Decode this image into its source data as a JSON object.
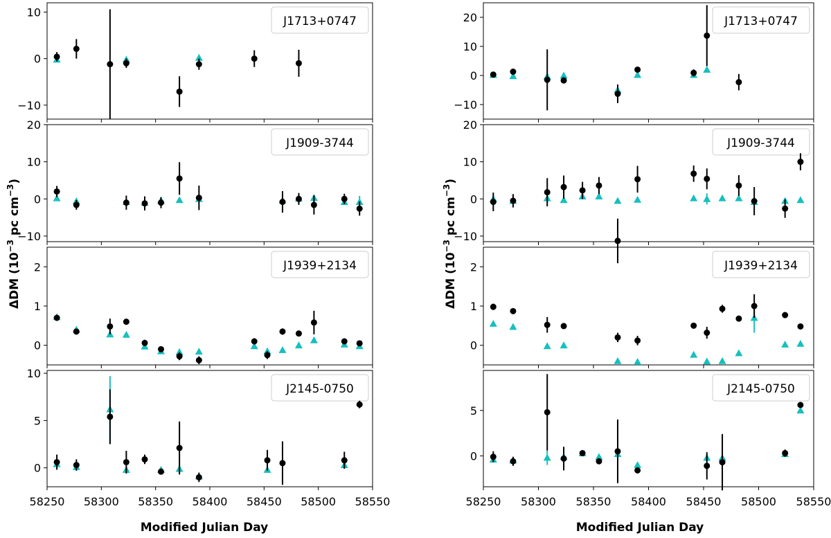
{
  "figure": {
    "xlabel": "Modified Julian Day",
    "ylabel_main": "ΔDM (10",
    "ylabel_exp": "−3",
    "ylabel_tail": " pc cm",
    "ylabel_tail_exp": "−3",
    "ylabel_close": ")",
    "xlim": [
      58250,
      58550
    ],
    "xticks": [
      58250,
      58300,
      58350,
      58400,
      58450,
      58500,
      58550
    ],
    "colors": {
      "measured": "#000000",
      "model": "#17bfbf"
    }
  },
  "chart_data": [
    {
      "type": "scatter",
      "column": "left",
      "panel": 1,
      "label": "J1713+0747",
      "ylim": [
        -13,
        12
      ],
      "yticks": [
        10,
        0,
        -10
      ],
      "ytick_labels": [
        "10",
        "0",
        "−10"
      ],
      "measured": [
        {
          "x": 58259,
          "y": 0.4,
          "err": 1.0
        },
        {
          "x": 58277,
          "y": 2.1,
          "err": 2.1
        },
        {
          "x": 58308,
          "y": -1.2,
          "err": 11.8
        },
        {
          "x": 58323,
          "y": -1.0,
          "err": 1.0
        },
        {
          "x": 58372,
          "y": -7.1,
          "err": 3.3
        },
        {
          "x": 58390,
          "y": -1.2,
          "err": 1.2
        },
        {
          "x": 58441,
          "y": 0.0,
          "err": 1.8
        },
        {
          "x": 58482,
          "y": -1.0,
          "err": 2.9
        }
      ],
      "model": [
        {
          "x": 58259,
          "y": -0.2,
          "err": 0
        },
        {
          "x": 58323,
          "y": -0.2,
          "err": 0
        },
        {
          "x": 58390,
          "y": 0.2,
          "err": 0
        }
      ]
    },
    {
      "type": "scatter",
      "column": "left",
      "panel": 2,
      "label": "J1909-3744",
      "ylim": [
        -11.5,
        20
      ],
      "yticks": [
        20,
        10,
        0,
        -10
      ],
      "ytick_labels": [
        "20",
        "10",
        "0",
        "−10"
      ],
      "measured": [
        {
          "x": 58259,
          "y": 2.0,
          "err": 1.5
        },
        {
          "x": 58277,
          "y": -1.6,
          "err": 1.3
        },
        {
          "x": 58323,
          "y": -1.0,
          "err": 1.9
        },
        {
          "x": 58340,
          "y": -1.2,
          "err": 1.9
        },
        {
          "x": 58355,
          "y": -1.0,
          "err": 1.5
        },
        {
          "x": 58372,
          "y": 5.5,
          "err": 4.4
        },
        {
          "x": 58390,
          "y": 0.3,
          "err": 3.3
        },
        {
          "x": 58467,
          "y": -0.8,
          "err": 2.9
        },
        {
          "x": 58482,
          "y": 0.0,
          "err": 1.6
        },
        {
          "x": 58496,
          "y": -1.6,
          "err": 2.6
        },
        {
          "x": 58524,
          "y": 0.0,
          "err": 1.4
        },
        {
          "x": 58538,
          "y": -2.6,
          "err": 1.9
        }
      ],
      "model": [
        {
          "x": 58259,
          "y": 0.2,
          "err": 0
        },
        {
          "x": 58277,
          "y": -0.6,
          "err": 0
        },
        {
          "x": 58323,
          "y": -0.8,
          "err": 0
        },
        {
          "x": 58340,
          "y": -1.0,
          "err": 0
        },
        {
          "x": 58355,
          "y": -0.4,
          "err": 0
        },
        {
          "x": 58372,
          "y": -0.3,
          "err": 0
        },
        {
          "x": 58390,
          "y": 0.0,
          "err": 0
        },
        {
          "x": 58467,
          "y": -0.4,
          "err": 0
        },
        {
          "x": 58482,
          "y": 0.1,
          "err": 0
        },
        {
          "x": 58496,
          "y": 0.3,
          "err": 0
        },
        {
          "x": 58524,
          "y": -0.8,
          "err": 0
        },
        {
          "x": 58538,
          "y": -0.8,
          "err": 1.6
        }
      ]
    },
    {
      "type": "scatter",
      "column": "left",
      "panel": 3,
      "label": "J1939+2134",
      "ylim": [
        -0.5,
        2.5
      ],
      "yticks": [
        2,
        1,
        0
      ],
      "ytick_labels": [
        "2",
        "1",
        "0"
      ],
      "measured": [
        {
          "x": 58259,
          "y": 0.7,
          "err": 0.08
        },
        {
          "x": 58277,
          "y": 0.35,
          "err": 0.05
        },
        {
          "x": 58308,
          "y": 0.48,
          "err": 0.2
        },
        {
          "x": 58323,
          "y": 0.6,
          "err": 0.06
        },
        {
          "x": 58340,
          "y": 0.06,
          "err": 0.08
        },
        {
          "x": 58355,
          "y": -0.1,
          "err": 0.05
        },
        {
          "x": 58372,
          "y": -0.28,
          "err": 0.1
        },
        {
          "x": 58390,
          "y": -0.38,
          "err": 0.1
        },
        {
          "x": 58441,
          "y": 0.1,
          "err": 0.08
        },
        {
          "x": 58453,
          "y": -0.25,
          "err": 0.1
        },
        {
          "x": 58467,
          "y": 0.35,
          "err": 0.08
        },
        {
          "x": 58482,
          "y": 0.3,
          "err": 0.06
        },
        {
          "x": 58496,
          "y": 0.58,
          "err": 0.3
        },
        {
          "x": 58524,
          "y": 0.1,
          "err": 0.06
        },
        {
          "x": 58538,
          "y": 0.05,
          "err": 0.06
        }
      ],
      "model": [
        {
          "x": 58259,
          "y": 0.72,
          "err": 0
        },
        {
          "x": 58277,
          "y": 0.4,
          "err": 0
        },
        {
          "x": 58308,
          "y": 0.28,
          "err": 0
        },
        {
          "x": 58323,
          "y": 0.27,
          "err": 0
        },
        {
          "x": 58340,
          "y": -0.03,
          "err": 0
        },
        {
          "x": 58355,
          "y": -0.15,
          "err": 0
        },
        {
          "x": 58372,
          "y": -0.17,
          "err": 0
        },
        {
          "x": 58390,
          "y": -0.16,
          "err": 0
        },
        {
          "x": 58441,
          "y": -0.02,
          "err": 0
        },
        {
          "x": 58453,
          "y": -0.15,
          "err": 0
        },
        {
          "x": 58467,
          "y": -0.12,
          "err": 0
        },
        {
          "x": 58482,
          "y": 0.0,
          "err": 0
        },
        {
          "x": 58496,
          "y": 0.13,
          "err": 0
        },
        {
          "x": 58524,
          "y": 0.02,
          "err": 0
        },
        {
          "x": 58538,
          "y": -0.02,
          "err": 0
        }
      ]
    },
    {
      "type": "scatter",
      "column": "left",
      "panel": 4,
      "label": "J2145-0750",
      "ylim": [
        -2.0,
        10.3
      ],
      "yticks": [
        10,
        5,
        0
      ],
      "ytick_labels": [
        "10",
        "5",
        "0"
      ],
      "measured": [
        {
          "x": 58259,
          "y": 0.6,
          "err": 0.8
        },
        {
          "x": 58277,
          "y": 0.3,
          "err": 0.6
        },
        {
          "x": 58308,
          "y": 5.4,
          "err": 2.9
        },
        {
          "x": 58323,
          "y": 0.6,
          "err": 1.2
        },
        {
          "x": 58340,
          "y": 0.9,
          "err": 0.5
        },
        {
          "x": 58355,
          "y": -0.4,
          "err": 0.3
        },
        {
          "x": 58372,
          "y": 2.1,
          "err": 2.8
        },
        {
          "x": 58390,
          "y": -1.0,
          "err": 0.5
        },
        {
          "x": 58453,
          "y": 0.8,
          "err": 1.1
        },
        {
          "x": 58467,
          "y": 0.5,
          "err": 2.3
        },
        {
          "x": 58524,
          "y": 0.8,
          "err": 0.9
        },
        {
          "x": 58538,
          "y": 6.7,
          "err": 0.4
        }
      ],
      "model": [
        {
          "x": 58259,
          "y": 0.4,
          "err": 0
        },
        {
          "x": 58277,
          "y": 0.1,
          "err": 0
        },
        {
          "x": 58308,
          "y": 6.2,
          "err": 3.5
        },
        {
          "x": 58323,
          "y": -0.2,
          "err": 0
        },
        {
          "x": 58355,
          "y": -0.2,
          "err": 0
        },
        {
          "x": 58372,
          "y": -0.1,
          "err": 0
        },
        {
          "x": 58390,
          "y": -0.9,
          "err": 0
        },
        {
          "x": 58453,
          "y": -0.2,
          "err": 0
        },
        {
          "x": 58524,
          "y": 0.3,
          "err": 0
        }
      ]
    },
    {
      "type": "scatter",
      "column": "right",
      "panel": 1,
      "label": "J1713+0747",
      "ylim": [
        -15,
        25
      ],
      "yticks": [
        20,
        10,
        0,
        -10
      ],
      "ytick_labels": [
        "20",
        "10",
        "0",
        "−10"
      ],
      "measured": [
        {
          "x": 58259,
          "y": 0.3,
          "err": 0.8
        },
        {
          "x": 58277,
          "y": 1.3,
          "err": 0.8
        },
        {
          "x": 58308,
          "y": -1.5,
          "err": 10.5
        },
        {
          "x": 58323,
          "y": -1.7,
          "err": 1.0
        },
        {
          "x": 58372,
          "y": -6.3,
          "err": 3.2
        },
        {
          "x": 58390,
          "y": 2.0,
          "err": 1.0
        },
        {
          "x": 58441,
          "y": 0.9,
          "err": 1.2
        },
        {
          "x": 58453,
          "y": 13.7,
          "err": 10.5
        },
        {
          "x": 58482,
          "y": -2.3,
          "err": 2.8
        }
      ],
      "model": [
        {
          "x": 58259,
          "y": 0.2,
          "err": 0
        },
        {
          "x": 58277,
          "y": -0.2,
          "err": 0
        },
        {
          "x": 58308,
          "y": -0.3,
          "err": 0
        },
        {
          "x": 58323,
          "y": 0.0,
          "err": 0
        },
        {
          "x": 58372,
          "y": -5.0,
          "err": 0
        },
        {
          "x": 58390,
          "y": 0.2,
          "err": 0
        },
        {
          "x": 58441,
          "y": 0.2,
          "err": 0
        },
        {
          "x": 58453,
          "y": 2.0,
          "err": 0
        }
      ]
    },
    {
      "type": "scatter",
      "column": "right",
      "panel": 2,
      "label": "J1909-3744",
      "ylim": [
        -11.5,
        20
      ],
      "yticks": [
        20,
        10,
        0,
        -10
      ],
      "ytick_labels": [
        "20",
        "10",
        "0",
        "−10"
      ],
      "measured": [
        {
          "x": 58259,
          "y": -0.8,
          "err": 2.5
        },
        {
          "x": 58277,
          "y": -0.5,
          "err": 1.8
        },
        {
          "x": 58308,
          "y": 1.8,
          "err": 3.8
        },
        {
          "x": 58323,
          "y": 3.2,
          "err": 3.1
        },
        {
          "x": 58340,
          "y": 2.3,
          "err": 2.3
        },
        {
          "x": 58355,
          "y": 3.6,
          "err": 2.3
        },
        {
          "x": 58372,
          "y": -11.3,
          "err": 6.0
        },
        {
          "x": 58390,
          "y": 5.3,
          "err": 3.6
        },
        {
          "x": 58441,
          "y": 6.8,
          "err": 2.2
        },
        {
          "x": 58453,
          "y": 5.4,
          "err": 2.8
        },
        {
          "x": 58482,
          "y": 3.6,
          "err": 2.8
        },
        {
          "x": 58496,
          "y": -0.6,
          "err": 3.8
        },
        {
          "x": 58524,
          "y": -2.6,
          "err": 2.5
        },
        {
          "x": 58538,
          "y": 10.0,
          "err": 2.3
        }
      ],
      "model": [
        {
          "x": 58259,
          "y": 0.0,
          "err": 0
        },
        {
          "x": 58277,
          "y": -0.5,
          "err": 0
        },
        {
          "x": 58308,
          "y": 0.2,
          "err": 0
        },
        {
          "x": 58323,
          "y": -0.3,
          "err": 0
        },
        {
          "x": 58340,
          "y": 0.7,
          "err": 0
        },
        {
          "x": 58355,
          "y": 0.7,
          "err": 0
        },
        {
          "x": 58372,
          "y": -0.5,
          "err": 0
        },
        {
          "x": 58390,
          "y": -0.2,
          "err": 0
        },
        {
          "x": 58441,
          "y": 0.2,
          "err": 0
        },
        {
          "x": 58453,
          "y": 0.0,
          "err": 1.5
        },
        {
          "x": 58467,
          "y": 0.2,
          "err": 0
        },
        {
          "x": 58482,
          "y": 0.2,
          "err": 0
        },
        {
          "x": 58496,
          "y": -0.8,
          "err": 0
        },
        {
          "x": 58524,
          "y": -0.5,
          "err": 0
        },
        {
          "x": 58538,
          "y": -0.3,
          "err": 0
        }
      ]
    },
    {
      "type": "scatter",
      "column": "right",
      "panel": 3,
      "label": "J1939+2134",
      "ylim": [
        -0.5,
        2.5
      ],
      "yticks": [
        2,
        1,
        0
      ],
      "ytick_labels": [
        "2",
        "1",
        "0"
      ],
      "measured": [
        {
          "x": 58259,
          "y": 0.98,
          "err": 0.08
        },
        {
          "x": 58277,
          "y": 0.87,
          "err": 0.07
        },
        {
          "x": 58308,
          "y": 0.52,
          "err": 0.2
        },
        {
          "x": 58323,
          "y": 0.49,
          "err": 0.05
        },
        {
          "x": 58372,
          "y": 0.2,
          "err": 0.12
        },
        {
          "x": 58390,
          "y": 0.12,
          "err": 0.12
        },
        {
          "x": 58441,
          "y": 0.5,
          "err": 0.06
        },
        {
          "x": 58453,
          "y": 0.32,
          "err": 0.15
        },
        {
          "x": 58467,
          "y": 0.93,
          "err": 0.1
        },
        {
          "x": 58482,
          "y": 0.68,
          "err": 0.07
        },
        {
          "x": 58496,
          "y": 1.0,
          "err": 0.3
        },
        {
          "x": 58524,
          "y": 0.77,
          "err": 0.07
        },
        {
          "x": 58538,
          "y": 0.48,
          "err": 0.06
        }
      ],
      "model": [
        {
          "x": 58259,
          "y": 0.55,
          "err": 0
        },
        {
          "x": 58277,
          "y": 0.47,
          "err": 0
        },
        {
          "x": 58308,
          "y": -0.02,
          "err": 0
        },
        {
          "x": 58323,
          "y": 0.0,
          "err": 0
        },
        {
          "x": 58372,
          "y": -0.4,
          "err": 0
        },
        {
          "x": 58390,
          "y": -0.42,
          "err": 0
        },
        {
          "x": 58441,
          "y": -0.24,
          "err": 0
        },
        {
          "x": 58453,
          "y": -0.41,
          "err": 0
        },
        {
          "x": 58467,
          "y": -0.4,
          "err": 0
        },
        {
          "x": 58482,
          "y": -0.2,
          "err": 0
        },
        {
          "x": 58496,
          "y": 0.7,
          "err": 0.38
        },
        {
          "x": 58524,
          "y": 0.02,
          "err": 0
        },
        {
          "x": 58538,
          "y": 0.04,
          "err": 0
        }
      ]
    },
    {
      "type": "scatter",
      "column": "right",
      "panel": 4,
      "label": "J2145-0750",
      "ylim": [
        -3.4,
        9.4
      ],
      "yticks": [
        5,
        0
      ],
      "ytick_labels": [
        "5",
        "0"
      ],
      "measured": [
        {
          "x": 58259,
          "y": -0.1,
          "err": 0.6
        },
        {
          "x": 58277,
          "y": -0.6,
          "err": 0.5
        },
        {
          "x": 58308,
          "y": 4.8,
          "err": 4.2
        },
        {
          "x": 58323,
          "y": -0.3,
          "err": 1.3
        },
        {
          "x": 58340,
          "y": 0.3,
          "err": 0.3
        },
        {
          "x": 58355,
          "y": -0.6,
          "err": 0.2
        },
        {
          "x": 58372,
          "y": 0.5,
          "err": 3.5
        },
        {
          "x": 58390,
          "y": -1.6,
          "err": 0.3
        },
        {
          "x": 58453,
          "y": -1.1,
          "err": 1.5
        },
        {
          "x": 58467,
          "y": -0.7,
          "err": 3.1
        },
        {
          "x": 58524,
          "y": 0.3,
          "err": 0.4
        },
        {
          "x": 58538,
          "y": 5.6,
          "err": 0.3
        }
      ],
      "model": [
        {
          "x": 58259,
          "y": -0.4,
          "err": 0
        },
        {
          "x": 58277,
          "y": -0.5,
          "err": 0
        },
        {
          "x": 58308,
          "y": -0.2,
          "err": 0.8
        },
        {
          "x": 58323,
          "y": -0.1,
          "err": 0
        },
        {
          "x": 58340,
          "y": 0.3,
          "err": 0
        },
        {
          "x": 58355,
          "y": -0.1,
          "err": 0
        },
        {
          "x": 58372,
          "y": 0.2,
          "err": 0
        },
        {
          "x": 58390,
          "y": -1.0,
          "err": 0
        },
        {
          "x": 58453,
          "y": -0.2,
          "err": 0
        },
        {
          "x": 58467,
          "y": -0.2,
          "err": 0
        },
        {
          "x": 58524,
          "y": 0.2,
          "err": 0
        },
        {
          "x": 58538,
          "y": 5.0,
          "err": 0
        }
      ]
    }
  ]
}
